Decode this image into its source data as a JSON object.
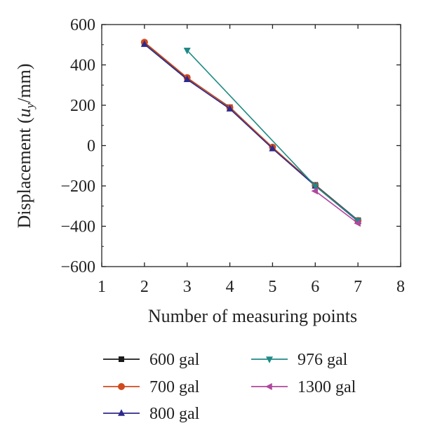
{
  "chart_data": {
    "type": "line",
    "xlabel": "Number of measuring points",
    "ylabel_main": "Displacement (",
    "ylabel_var": "u",
    "ylabel_sub": "y",
    "ylabel_tail": "/mm)",
    "xlim": [
      1,
      8
    ],
    "ylim": [
      -600,
      600
    ],
    "xticks": [
      1,
      2,
      3,
      4,
      5,
      6,
      7,
      8
    ],
    "yticks": [
      -600,
      -400,
      -200,
      0,
      200,
      400,
      600
    ],
    "grid": false,
    "legend_position": "bottom",
    "series": [
      {
        "name": "600 gal",
        "color": "#1a1a1a",
        "marker": "square",
        "points": [
          [
            2,
            510
          ],
          [
            3,
            335
          ],
          [
            4,
            190
          ],
          [
            5,
            -10
          ],
          [
            6,
            -195
          ],
          [
            7,
            -370
          ]
        ]
      },
      {
        "name": "700 gal",
        "color": "#d04a1e",
        "marker": "circle",
        "points": [
          [
            2,
            512
          ],
          [
            3,
            337
          ],
          [
            4,
            188
          ],
          [
            5,
            -8
          ],
          [
            6,
            -198
          ],
          [
            7,
            -372
          ]
        ]
      },
      {
        "name": "800 gal",
        "color": "#2e2a8c",
        "marker": "triangle-up",
        "points": [
          [
            2,
            502
          ],
          [
            3,
            328
          ],
          [
            4,
            182
          ],
          [
            5,
            -15
          ],
          [
            6,
            -200
          ],
          [
            7,
            -375
          ]
        ]
      },
      {
        "name": "976 gal",
        "color": "#1e8a86",
        "marker": "triangle-down",
        "points": [
          [
            3,
            472
          ],
          [
            6,
            -200
          ],
          [
            7,
            -372
          ]
        ]
      },
      {
        "name": "1300 gal",
        "color": "#b0479e",
        "marker": "triangle-left",
        "points": [
          [
            6,
            -225
          ],
          [
            7,
            -385
          ]
        ]
      }
    ]
  }
}
